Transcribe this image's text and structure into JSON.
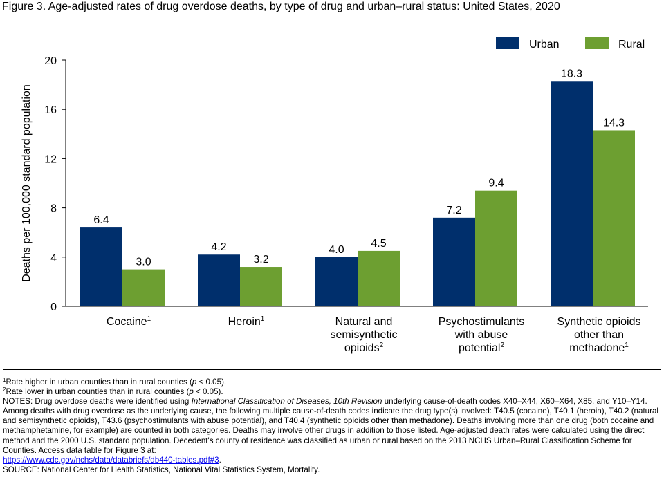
{
  "title": "Figure 3. Age-adjusted rates of drug overdose deaths, by type of drug and urban–rural status: United States, 2020",
  "chart_data": {
    "type": "bar",
    "ylabel": "Deaths per 100,000 standard population",
    "ylim": [
      0,
      20
    ],
    "yticks": [
      0,
      4,
      8,
      12,
      16,
      20
    ],
    "legend_position": "top-right",
    "categories": [
      {
        "lines": [
          "Cocaine"
        ],
        "sup": "1"
      },
      {
        "lines": [
          "Heroin"
        ],
        "sup": "1"
      },
      {
        "lines": [
          "Natural and",
          "semisynthetic",
          "opioids"
        ],
        "sup": "2"
      },
      {
        "lines": [
          "Psychostimulants",
          "with abuse",
          "potential"
        ],
        "sup": "2"
      },
      {
        "lines": [
          "Synthetic opioids",
          "other than",
          "methadone"
        ],
        "sup": "1"
      }
    ],
    "series": [
      {
        "name": "Urban",
        "color": "#002f6c",
        "values": [
          6.4,
          4.2,
          4.0,
          7.2,
          18.3
        ],
        "labels": [
          "6.4",
          "4.2",
          "4.0",
          "7.2",
          "18.3"
        ]
      },
      {
        "name": "Rural",
        "color": "#6d9f31",
        "values": [
          3.0,
          3.2,
          4.5,
          9.4,
          14.3
        ],
        "labels": [
          "3.0",
          "3.2",
          "4.5",
          "9.4",
          "14.3"
        ]
      }
    ]
  },
  "footnotes": {
    "fn1": {
      "sup": "1",
      "pre": "Rate higher in urban counties than in rural counties (",
      "p": "p",
      "post": " < 0.05)."
    },
    "fn2": {
      "sup": "2",
      "pre": "Rate lower in urban counties than in rural counties (",
      "p": "p",
      "post": " < 0.05)."
    },
    "notes_pre": "NOTES: Drug overdose deaths were identified using ",
    "notes_icd": "International Classification of Diseases, 10th Revision",
    "notes_post": " underlying cause-of-death codes X40–X44, X60–X64, X85, and Y10–Y14. Among deaths with drug overdose as the underlying cause, the following multiple cause-of-death codes indicate the drug type(s) involved: T40.5 (cocaine), T40.1 (heroin), T40.2 (natural and semisynthetic opioids), T43.6 (psychostimulants with abuse potential), and T40.4 (synthetic opioids other than methadone). Deaths involving more than one drug (both cocaine and methamphetamine, for example) are counted in both categories. Deaths may involve other drugs in addition to those listed. Age-adjusted death rates were calculated using the direct method and the 2000 U.S. standard population. Decedent's county of residence was classified as urban or rural based on the 2013 NCHS Urban–Rural Classification Scheme for Counties. Access data table for Figure 3 at:",
    "link": "https://www.cdc.gov/nchs/data/databriefs/db440-tables.pdf#3",
    "link_suffix": ".",
    "source": "SOURCE: National Center for Health Statistics, National Vital Statistics System, Mortality."
  }
}
